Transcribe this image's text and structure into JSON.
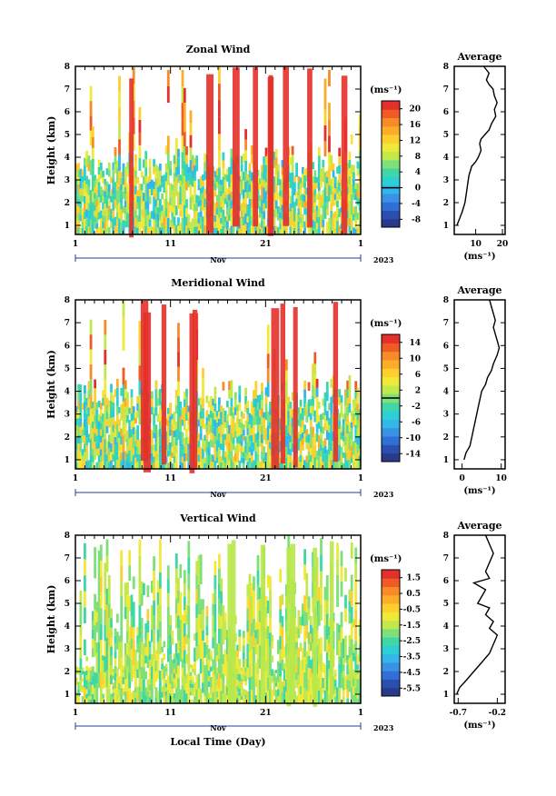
{
  "chart_data": [
    {
      "type": "heatmap",
      "title": "Zonal Wind",
      "ylabel": "Height (km)",
      "yticks": [
        "1",
        "2",
        "3",
        "4",
        "5",
        "6",
        "7",
        "8"
      ],
      "xticks": [
        "1",
        "11",
        "21",
        "1"
      ],
      "month_label": "Nov",
      "year_label": "2023",
      "colorbar_unit": "(ms⁻¹)",
      "colorbar_ticks": [
        "20",
        "16",
        "12",
        "8",
        "4",
        "0",
        "-4",
        "-8"
      ],
      "colorbar_range": [
        -10,
        22
      ],
      "zero_line_value": 0,
      "avg_title": "Average",
      "avg_unit": "(ms⁻¹)",
      "avg_xticks": [
        "10",
        "20"
      ],
      "avg_xlim": [
        2,
        21
      ],
      "avg_profile": [
        [
          1.0,
          3
        ],
        [
          1.3,
          4
        ],
        [
          1.6,
          5
        ],
        [
          2.0,
          6
        ],
        [
          2.4,
          6.5
        ],
        [
          2.8,
          7
        ],
        [
          3.2,
          7.5
        ],
        [
          3.6,
          8.5
        ],
        [
          3.8,
          10
        ],
        [
          4.0,
          11
        ],
        [
          4.3,
          12
        ],
        [
          4.6,
          11.5
        ],
        [
          4.8,
          12
        ],
        [
          5.0,
          13.5
        ],
        [
          5.2,
          15
        ],
        [
          5.5,
          16
        ],
        [
          5.8,
          17.5
        ],
        [
          6.1,
          17
        ],
        [
          6.4,
          18
        ],
        [
          6.7,
          17
        ],
        [
          7.0,
          16.5
        ],
        [
          7.2,
          15
        ],
        [
          7.4,
          14
        ],
        [
          7.7,
          15
        ],
        [
          8.0,
          13
        ]
      ]
    },
    {
      "type": "heatmap",
      "title": "Meridional Wind",
      "ylabel": "Height (km)",
      "yticks": [
        "1",
        "2",
        "3",
        "4",
        "5",
        "6",
        "7",
        "8"
      ],
      "xticks": [
        "1",
        "11",
        "21",
        "1"
      ],
      "month_label": "Nov",
      "year_label": "2023",
      "colorbar_unit": "(ms⁻¹)",
      "colorbar_ticks": [
        "14",
        "10",
        "6",
        "2",
        "-2",
        "-6",
        "-10",
        "-14"
      ],
      "colorbar_range": [
        -16,
        16
      ],
      "zero_line_value": 0,
      "avg_title": "Average",
      "avg_unit": "(ms⁻¹)",
      "avg_xticks": [
        "0",
        "10"
      ],
      "avg_xlim": [
        -2,
        11
      ],
      "avg_profile": [
        [
          1.0,
          0.5
        ],
        [
          1.3,
          1
        ],
        [
          1.6,
          2
        ],
        [
          2.0,
          2.5
        ],
        [
          2.4,
          3
        ],
        [
          2.8,
          3.5
        ],
        [
          3.2,
          4
        ],
        [
          3.6,
          4.5
        ],
        [
          4.0,
          5
        ],
        [
          4.3,
          6
        ],
        [
          4.6,
          6.5
        ],
        [
          4.9,
          7.5
        ],
        [
          5.2,
          8
        ],
        [
          5.6,
          9
        ],
        [
          5.9,
          9.5
        ],
        [
          6.2,
          9
        ],
        [
          6.5,
          8.5
        ],
        [
          6.8,
          8
        ],
        [
          7.1,
          8.5
        ],
        [
          7.4,
          8
        ],
        [
          7.7,
          7.5
        ],
        [
          8.0,
          7
        ]
      ]
    },
    {
      "type": "heatmap",
      "title": "Vertical Wind",
      "ylabel": "Height (km)",
      "xlabel": "Local Time (Day)",
      "yticks": [
        "1",
        "2",
        "3",
        "4",
        "5",
        "6",
        "7",
        "8"
      ],
      "xticks": [
        "1",
        "11",
        "21",
        "1"
      ],
      "month_label": "Nov",
      "year_label": "2023",
      "colorbar_unit": "(ms⁻¹)",
      "colorbar_ticks": [
        "1.5",
        "0.5",
        "-0.5",
        "-1.5",
        "-2.5",
        "-3.5",
        "-4.5",
        "-5.5"
      ],
      "colorbar_range": [
        -6,
        2
      ],
      "avg_title": "Average",
      "avg_unit": "(ms⁻¹)",
      "avg_xticks": [
        "-0.7",
        "-0.2"
      ],
      "avg_xlim": [
        -0.75,
        -0.1
      ],
      "avg_profile": [
        [
          1.0,
          -0.72
        ],
        [
          1.3,
          -0.68
        ],
        [
          1.6,
          -0.6
        ],
        [
          2.0,
          -0.5
        ],
        [
          2.4,
          -0.4
        ],
        [
          2.8,
          -0.3
        ],
        [
          3.2,
          -0.25
        ],
        [
          3.6,
          -0.2
        ],
        [
          3.9,
          -0.3
        ],
        [
          4.2,
          -0.25
        ],
        [
          4.5,
          -0.35
        ],
        [
          4.8,
          -0.3
        ],
        [
          5.0,
          -0.45
        ],
        [
          5.3,
          -0.4
        ],
        [
          5.6,
          -0.35
        ],
        [
          5.9,
          -0.5
        ],
        [
          6.1,
          -0.3
        ],
        [
          6.4,
          -0.35
        ],
        [
          6.8,
          -0.3
        ],
        [
          7.2,
          -0.25
        ],
        [
          7.6,
          -0.3
        ],
        [
          8.0,
          -0.35
        ]
      ]
    }
  ]
}
